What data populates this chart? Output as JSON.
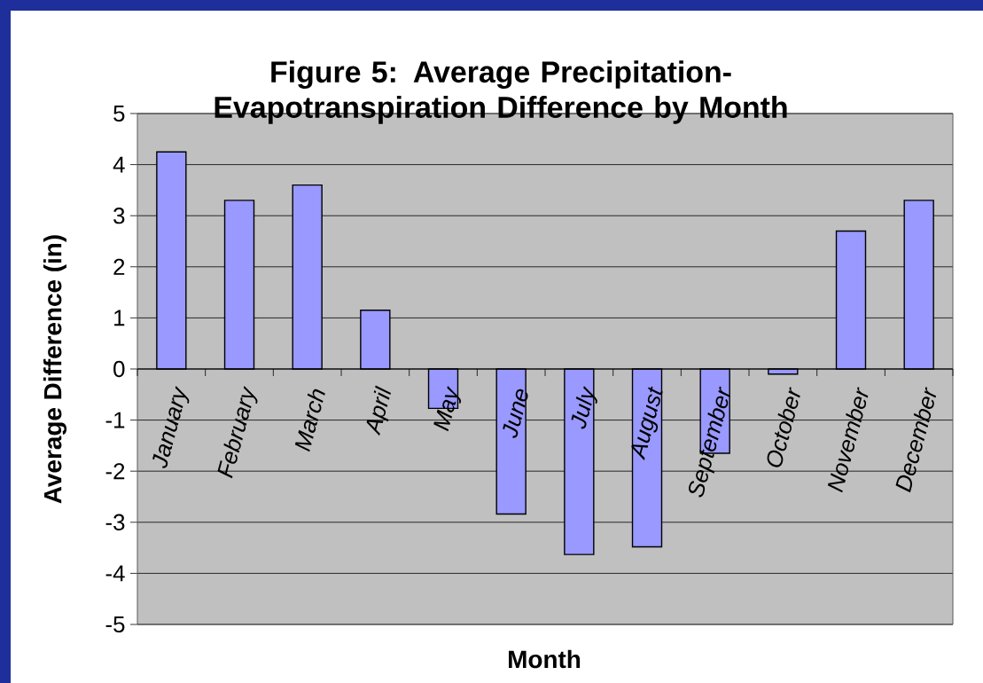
{
  "chart_data": {
    "type": "bar",
    "title": "Figure 5: Average Precipitation-Evapotranspiration Difference by Month",
    "xlabel": "Month",
    "ylabel": "Average Difference (in)",
    "categories": [
      "January",
      "February",
      "March",
      "April",
      "May",
      "June",
      "July",
      "August",
      "September",
      "October",
      "November",
      "December"
    ],
    "values": [
      4.25,
      3.3,
      3.6,
      1.15,
      -0.77,
      -2.84,
      -3.63,
      -3.48,
      -1.65,
      -0.1,
      2.7,
      3.3
    ],
    "color": "#9999ff",
    "ylim": [
      -5,
      5
    ],
    "yticks": [
      -5,
      -4,
      -3,
      -2,
      -1,
      0,
      1,
      2,
      3,
      4,
      5
    ],
    "grid": "y"
  }
}
